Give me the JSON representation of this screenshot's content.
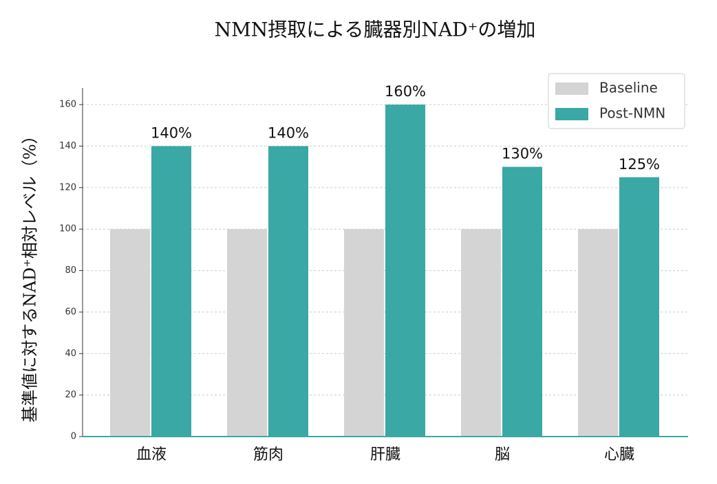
{
  "chart_data": {
    "type": "bar",
    "title": "NMN摂取による臓器別NAD⁺の増加",
    "y_label": "基準値に対するNAD⁺相対レベル（%）",
    "categories": [
      "血液",
      "筋肉",
      "肝臓",
      "脳",
      "心臓"
    ],
    "series": [
      {
        "name": "Baseline",
        "color": "#d4d4d4",
        "values": [
          100,
          100,
          100,
          100,
          100
        ]
      },
      {
        "name": "Post-NMN",
        "color": "#3aa8a4",
        "values": [
          140,
          140,
          160,
          130,
          125
        ],
        "value_labels": [
          "140%",
          "140%",
          "160%",
          "130%",
          "125%"
        ]
      }
    ],
    "ylim": [
      0,
      168
    ],
    "yticks": [
      0,
      20,
      40,
      60,
      80,
      100,
      120,
      140,
      160
    ],
    "grid": true,
    "legend": "upper right"
  }
}
